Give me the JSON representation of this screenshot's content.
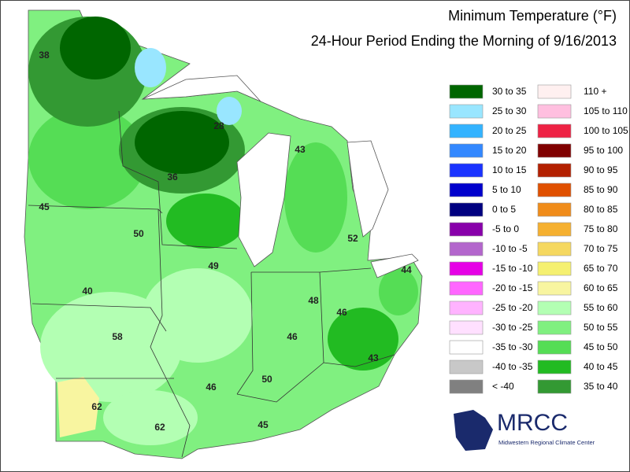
{
  "header": {
    "title": "Minimum Temperature (°F)",
    "subtitle": "24-Hour Period Ending the Morning of 9/16/2013"
  },
  "legend": {
    "columns": [
      [
        {
          "label": "30 to 35",
          "color": "#006600"
        },
        {
          "label": "25 to 30",
          "color": "#99e6ff"
        },
        {
          "label": "20 to 25",
          "color": "#33b3ff"
        },
        {
          "label": "15 to 20",
          "color": "#3388ff"
        },
        {
          "label": "10 to 15",
          "color": "#1a33ff"
        },
        {
          "label": "5 to 10",
          "color": "#0000cc"
        },
        {
          "label": "0 to 5",
          "color": "#000080"
        },
        {
          "label": "-5 to 0",
          "color": "#8800aa"
        },
        {
          "label": "-10 to -5",
          "color": "#b366cc"
        },
        {
          "label": "-15 to -10",
          "color": "#e600e6"
        },
        {
          "label": "-20 to -15",
          "color": "#ff66ff"
        },
        {
          "label": "-25 to -20",
          "color": "#ffb3ff"
        },
        {
          "label": "-30 to -25",
          "color": "#ffe0ff"
        },
        {
          "label": "-35 to -30",
          "color": "#ffffff"
        },
        {
          "label": "-40 to -35",
          "color": "#c8c8c8"
        },
        {
          "label": "< -40",
          "color": "#808080"
        }
      ],
      [
        {
          "label": "110 +",
          "color": "#fff0f0"
        },
        {
          "label": "105 to 110",
          "color": "#ffbfdf"
        },
        {
          "label": "100 to 105",
          "color": "#ee2244"
        },
        {
          "label": "95 to 100",
          "color": "#800000"
        },
        {
          "label": "90 to 95",
          "color": "#b32000"
        },
        {
          "label": "85 to 90",
          "color": "#e05000"
        },
        {
          "label": "80 to 85",
          "color": "#f08c1a"
        },
        {
          "label": "75 to 80",
          "color": "#f5b030"
        },
        {
          "label": "70 to 75",
          "color": "#f5d860"
        },
        {
          "label": "65 to 70",
          "color": "#f5f070"
        },
        {
          "label": "60 to 65",
          "color": "#f8f5a0"
        },
        {
          "label": "55 to 60",
          "color": "#b3ffb3"
        },
        {
          "label": "50 to 55",
          "color": "#80f080"
        },
        {
          "label": "45 to 50",
          "color": "#55dd55"
        },
        {
          "label": "40 to 45",
          "color": "#22bb22"
        },
        {
          "label": "35 to 40",
          "color": "#339933"
        }
      ]
    ]
  },
  "stations": [
    38,
    28,
    43,
    36,
    45,
    50,
    52,
    49,
    44,
    40,
    48,
    46,
    58,
    46,
    43,
    50,
    46,
    62,
    45,
    62
  ],
  "logo": {
    "name": "MRCC",
    "caption": "Midwestern Regional Climate Center"
  }
}
